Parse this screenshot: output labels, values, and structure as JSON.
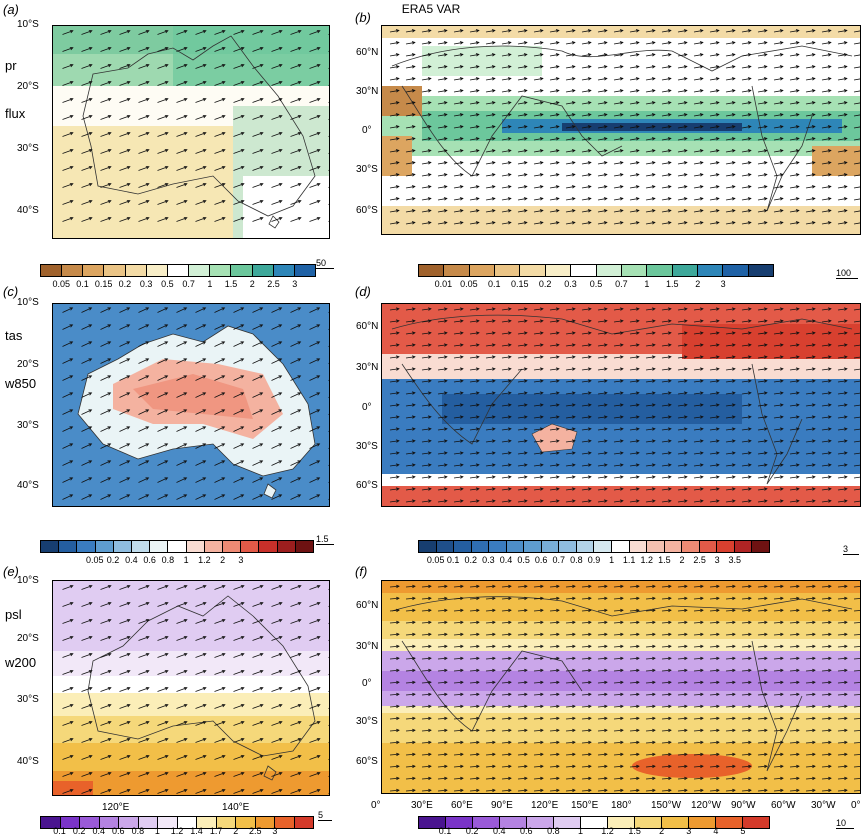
{
  "title": "ERA5 VAR",
  "panels": {
    "a": {
      "label": "(a)",
      "var1": "pr",
      "var2": "flux"
    },
    "b": {
      "label": "(b)"
    },
    "c": {
      "label": "(c)",
      "var1": "tas",
      "var2": "w850"
    },
    "d": {
      "label": "(d)"
    },
    "e": {
      "label": "(e)",
      "var1": "psl",
      "var2": "w200"
    },
    "f": {
      "label": "(f)"
    }
  },
  "aus_lat_ticks": [
    "10°S",
    "20°S",
    "30°S",
    "40°S"
  ],
  "aus_lon_ticks": [
    "120°E",
    "140°E"
  ],
  "glob_lat_ticks": [
    "60°N",
    "30°N",
    "0°",
    "30°S",
    "60°S"
  ],
  "glob_lon_ticks": [
    "0°",
    "30°E",
    "60°E",
    "90°E",
    "120°E",
    "150°E",
    "180°",
    "150°W",
    "120°W",
    "90°W",
    "60°W",
    "30°W",
    "0°"
  ],
  "colorbars": {
    "a": {
      "labels": [
        "0.05",
        "0.1",
        "0.15",
        "0.2",
        "0.3",
        "0.5",
        "0.7",
        "1",
        "1.5",
        "2",
        "2.5",
        "3"
      ],
      "ref": "50",
      "colors": [
        "#a0622c",
        "#c68a4a",
        "#dca560",
        "#eac486",
        "#f3dba6",
        "#f8eec8",
        "#ffffff",
        "#d2f0d6",
        "#a6e1b4",
        "#6cc79c",
        "#3ea89a",
        "#2e86b8",
        "#1f62a6"
      ]
    },
    "b": {
      "labels": [
        "0.01",
        "0.05",
        "0.1",
        "0.15",
        "0.2",
        "0.3",
        "0.5",
        "0.7",
        "1",
        "1.5",
        "2",
        "3"
      ],
      "ref": "100",
      "colors": [
        "#a0622c",
        "#c68a4a",
        "#dca560",
        "#eac486",
        "#f3dba6",
        "#f8eec8",
        "#ffffff",
        "#d2f0d6",
        "#a6e1b4",
        "#6cc79c",
        "#3ea89a",
        "#2e86b8",
        "#1f62a6",
        "#173e70"
      ]
    },
    "c": {
      "labels": [
        "0.05",
        "0.2",
        "0.4",
        "0.6",
        "0.8",
        "1",
        "1.2",
        "2",
        "3"
      ],
      "ref": "1.5",
      "colors": [
        "#173e70",
        "#245ea0",
        "#3a7cc0",
        "#5e9dd0",
        "#8fbde0",
        "#c0dcec",
        "#eaf4f6",
        "#ffffff",
        "#f9dcd2",
        "#f4b2a0",
        "#ee8a74",
        "#e35a48",
        "#c8302a",
        "#9c1e1e",
        "#6e1212"
      ]
    },
    "d": {
      "labels": [
        "0.05",
        "0.1",
        "0.2",
        "0.3",
        "0.4",
        "0.5",
        "0.6",
        "0.7",
        "0.8",
        "0.9",
        "1",
        "1.1",
        "1.2",
        "1.5",
        "2",
        "2.5",
        "3",
        "3.5"
      ],
      "ref": "3",
      "colors": [
        "#173e70",
        "#1f4f8a",
        "#245ea0",
        "#2f6eb2",
        "#3a7cc0",
        "#4d8ec8",
        "#5e9dd0",
        "#78aed8",
        "#8fbde0",
        "#b2d3e8",
        "#d6e9f0",
        "#ffffff",
        "#f9dcd2",
        "#f4c0b0",
        "#f4b2a0",
        "#ee8a74",
        "#e35a48",
        "#d8402f",
        "#b02424",
        "#6e1212"
      ]
    },
    "e": {
      "labels": [
        "0.1",
        "0.2",
        "0.4",
        "0.6",
        "0.8",
        "1",
        "1.2",
        "1.4",
        "1.7",
        "2",
        "2.5",
        "3"
      ],
      "ref": "5",
      "colors": [
        "#4a1490",
        "#7a34c8",
        "#9a5ad8",
        "#b483e2",
        "#cba7ea",
        "#e0ccf2",
        "#f2e8f8",
        "#ffffff",
        "#fbeeb8",
        "#f5d87a",
        "#f2bf48",
        "#ee9a30",
        "#e8622a",
        "#d43a2a"
      ]
    },
    "f": {
      "labels": [
        "0.1",
        "0.2",
        "0.4",
        "0.6",
        "0.8",
        "1",
        "1.2",
        "1.5",
        "2",
        "3",
        "4",
        "5"
      ],
      "ref": "10",
      "colors": [
        "#4a1490",
        "#7a34c8",
        "#9a5ad8",
        "#b483e2",
        "#cba7ea",
        "#e0ccf2",
        "#ffffff",
        "#fbeeb8",
        "#f5d87a",
        "#f2bf48",
        "#ee9a30",
        "#e8622a",
        "#d43a2a"
      ]
    }
  }
}
